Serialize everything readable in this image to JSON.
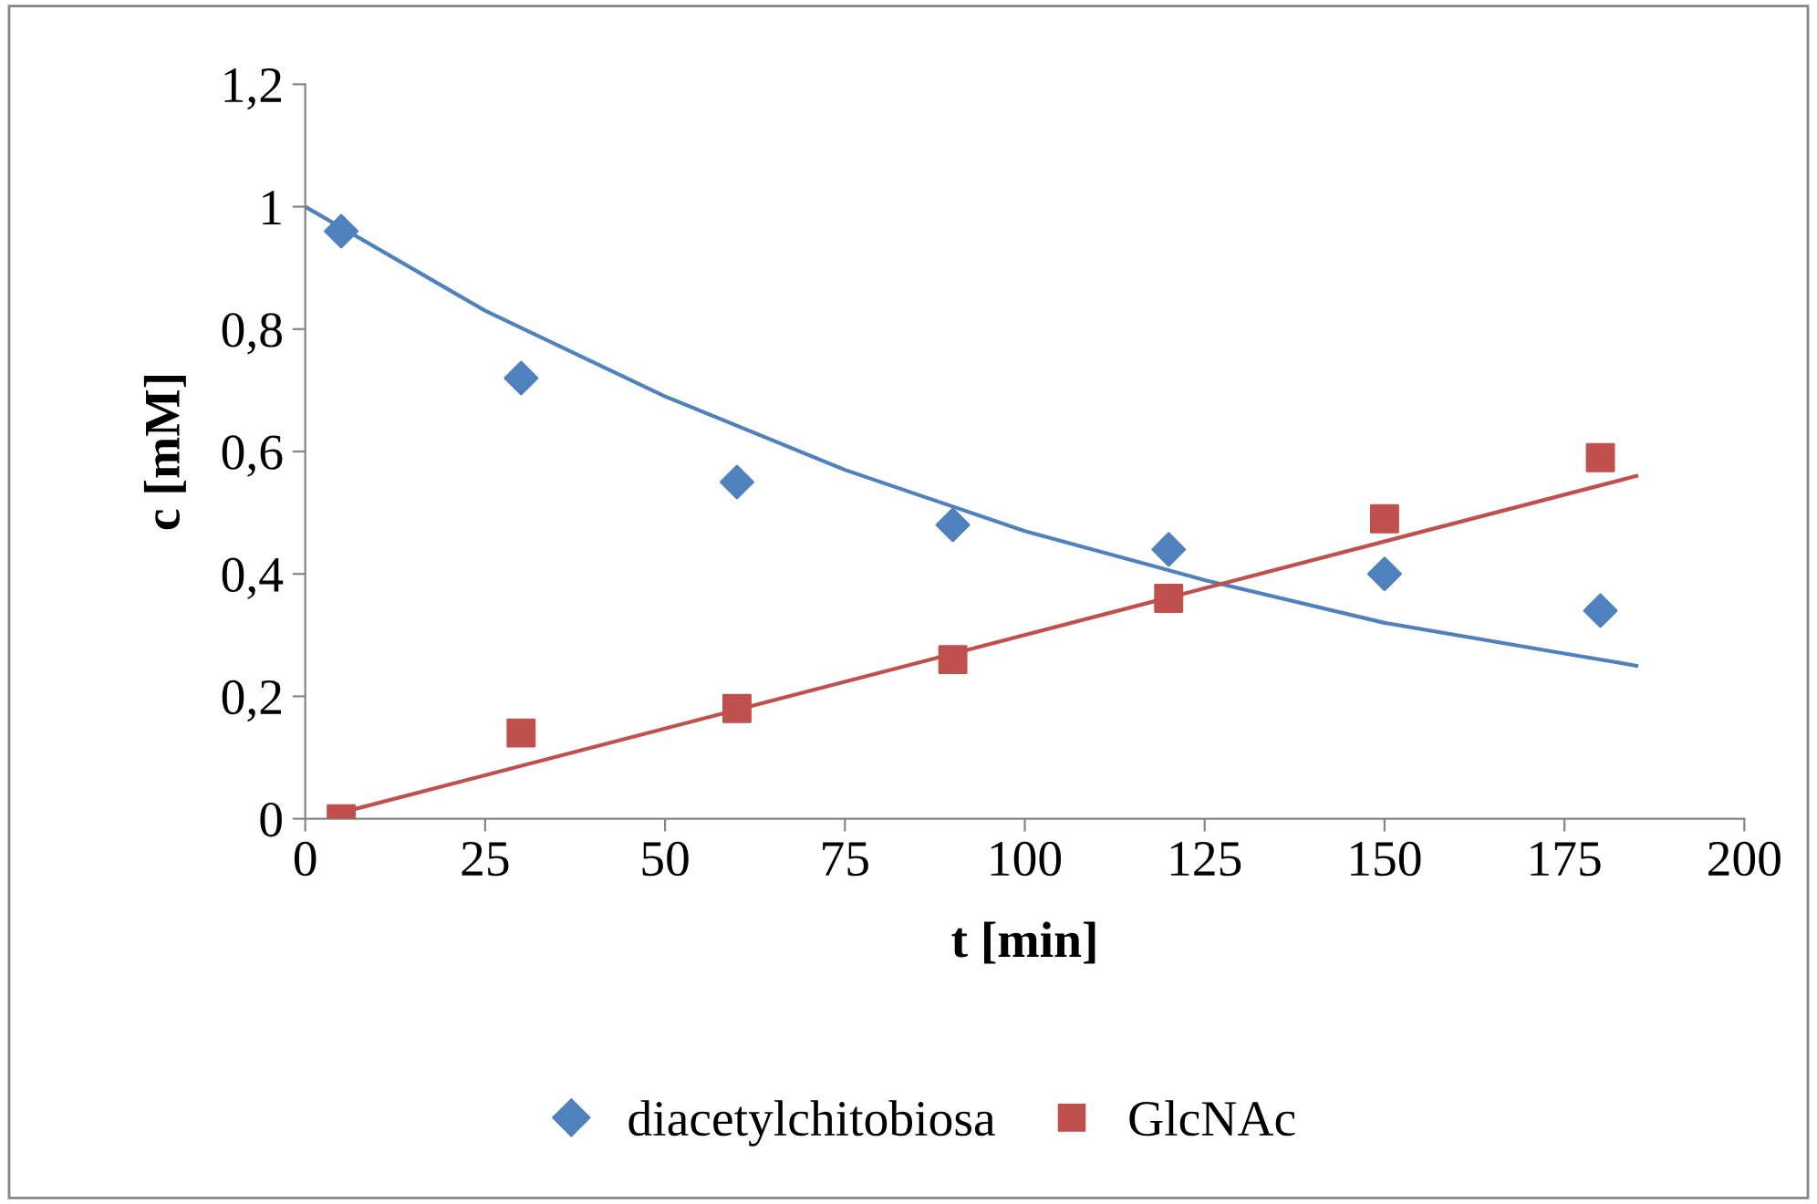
{
  "chart_data": {
    "type": "scatter",
    "xlabel": "t [min]",
    "ylabel": "c [mM]",
    "xlim": [
      0,
      200
    ],
    "xticks": [
      0,
      25,
      50,
      75,
      100,
      125,
      150,
      175,
      200
    ],
    "ylim": [
      0,
      1.2
    ],
    "yticks": [
      0,
      {
        "value": 0.2,
        "label": "0,2"
      },
      {
        "value": 0.4,
        "label": "0,4"
      },
      {
        "value": 0.6,
        "label": "0,6"
      },
      {
        "value": 0.8,
        "label": "0,8"
      },
      1,
      {
        "value": 1.2,
        "label": "1,2"
      }
    ],
    "grid": false,
    "legend": "bottom",
    "series": [
      {
        "name": "diacetylchitobiosa",
        "color": "#4f81bd",
        "marker": "diamond",
        "x": [
          5,
          30,
          60,
          90,
          120,
          150,
          180
        ],
        "values": [
          0.96,
          0.72,
          0.55,
          0.48,
          0.44,
          0.4,
          0.34
        ]
      },
      {
        "name": "GlcNAc",
        "color": "#c0504d",
        "marker": "square",
        "x": [
          5,
          30,
          60,
          90,
          120,
          150,
          180
        ],
        "values": [
          0.0,
          0.14,
          0.18,
          0.26,
          0.36,
          0.49,
          0.59
        ]
      },
      {
        "type": "line",
        "color": "#4f81bd",
        "marker": "none",
        "x": [
          0,
          25,
          50,
          75,
          100,
          125,
          150,
          175,
          185
        ],
        "values": [
          1.0,
          0.83,
          0.69,
          0.57,
          0.47,
          0.39,
          0.32,
          0.27,
          0.25
        ]
      },
      {
        "type": "line",
        "color": "#c0504d",
        "marker": "none",
        "x": [
          5,
          185
        ],
        "values": [
          0.01,
          0.56
        ]
      }
    ]
  }
}
